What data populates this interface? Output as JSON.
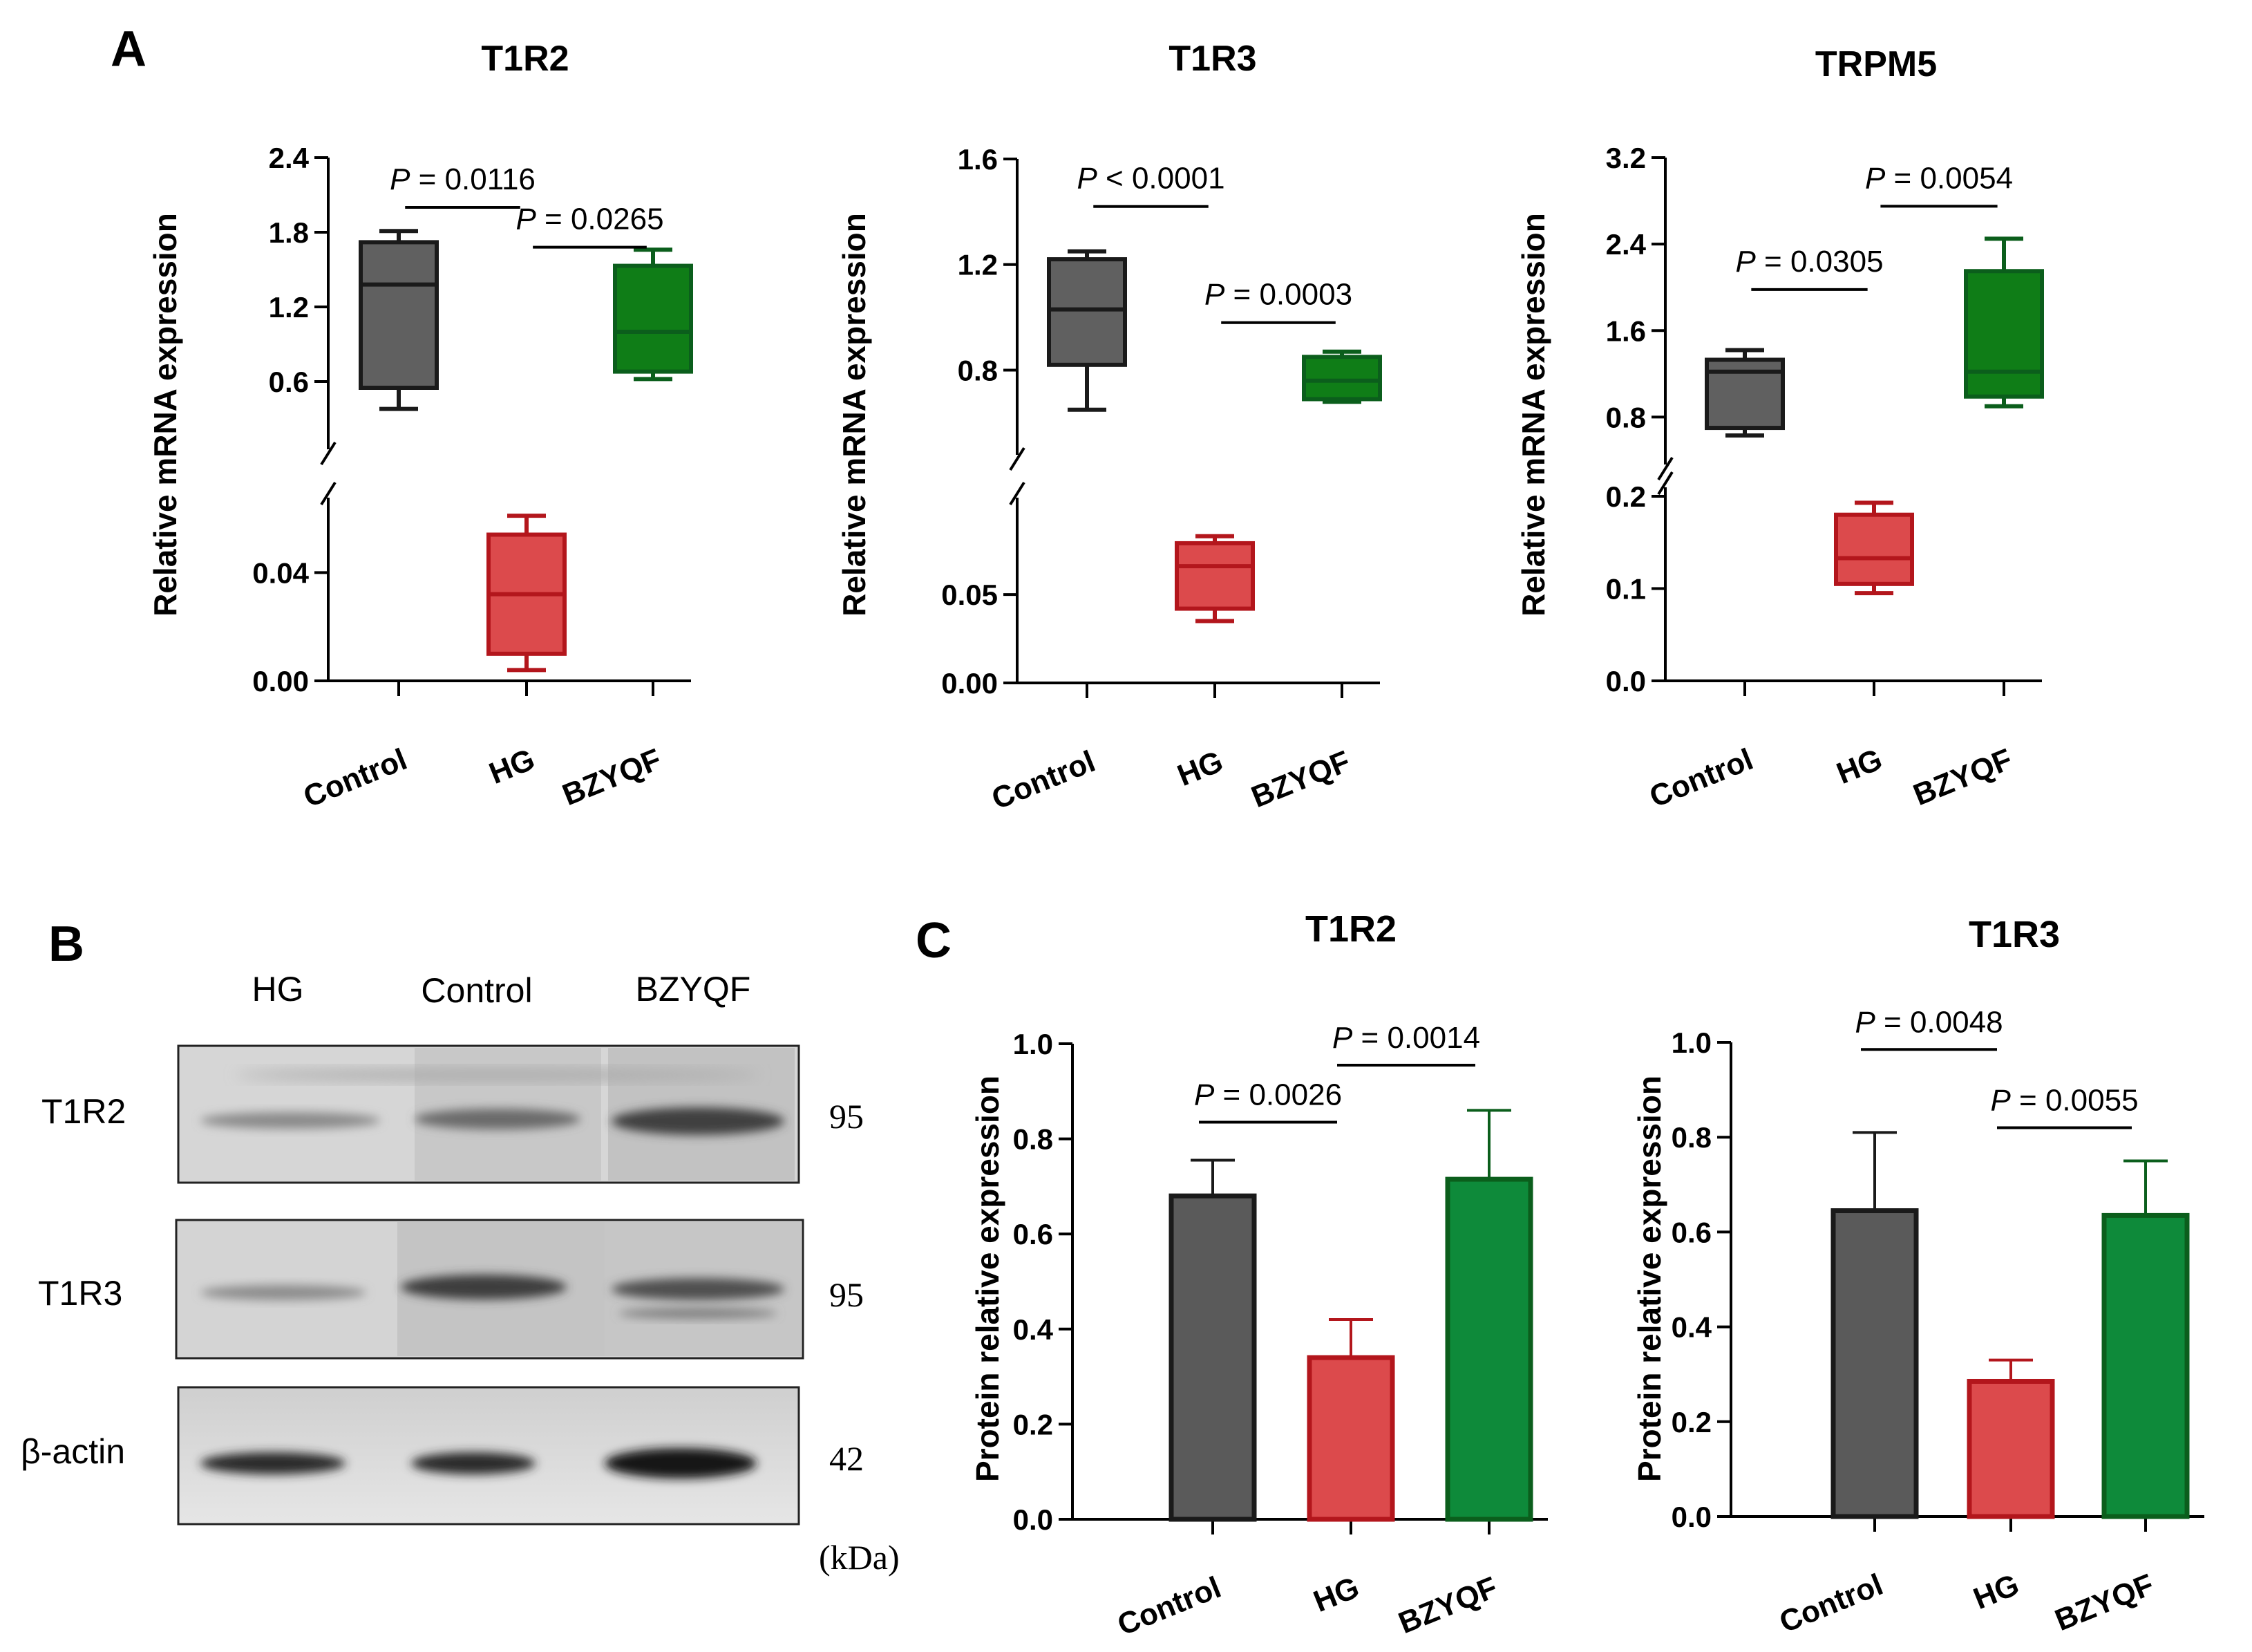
{
  "panels": {
    "A": {
      "letter": "A"
    },
    "B": {
      "letter": "B",
      "lanes": [
        "HG",
        "Control",
        "BZYQF"
      ],
      "rows": [
        {
          "label": "T1R2",
          "kda": "95"
        },
        {
          "label": "T1R3",
          "kda": "95"
        },
        {
          "label": "β-actin",
          "kda": "42"
        }
      ],
      "unit": "(kDa)"
    },
    "C": {
      "letter": "C"
    }
  },
  "colors": {
    "control_fill": "#5a5a5a",
    "control_stroke": "#1a1a1a",
    "hg_fill": "#dc4a4c",
    "hg_stroke": "#b3161c",
    "bzyqf_fill": "#0e8a3a",
    "bzyqf_stroke": "#0b5e1c",
    "box_control_fill": "#606060",
    "box_hg_fill": "#dc4a4c",
    "box_bzyqf_fill": "#0f7d17"
  },
  "chart_data": [
    {
      "type": "box",
      "title": "T1R2",
      "ylabel": "Relative mRNA expression",
      "categories": [
        "Control",
        "HG",
        "BZYQF"
      ],
      "broken_axis": {
        "lower_range": [
          0,
          0.06
        ],
        "upper_range": [
          0.3,
          2.4
        ]
      },
      "yticks_lower": [
        "0.00",
        "0.04"
      ],
      "yticks_upper": [
        "0.6",
        "1.2",
        "1.8",
        "2.4"
      ],
      "boxes": [
        {
          "name": "Control",
          "min": 0.38,
          "q1": 0.55,
          "median": 1.38,
          "q3": 1.72,
          "max": 1.81
        },
        {
          "name": "HG",
          "min": 0.004,
          "q1": 0.01,
          "median": 0.032,
          "q3": 0.054,
          "max": 0.061
        },
        {
          "name": "BZYQF",
          "min": 0.62,
          "q1": 0.68,
          "median": 1.0,
          "q3": 1.53,
          "max": 1.66
        }
      ],
      "comparisons": [
        {
          "from": 0,
          "to": 1,
          "label": "= 0.0116",
          "y": 2.0
        },
        {
          "from": 1,
          "to": 2,
          "label": "= 0.0265",
          "y": 1.68
        }
      ]
    },
    {
      "type": "box",
      "title": "T1R3",
      "ylabel": "Relative mRNA expression",
      "categories": [
        "Control",
        "HG",
        "BZYQF"
      ],
      "broken_axis": {
        "lower_range": [
          0,
          0.095
        ],
        "upper_range": [
          0.5,
          1.6
        ]
      },
      "yticks_lower": [
        "0.00",
        "0.05"
      ],
      "yticks_upper": [
        "0.8",
        "1.2",
        "1.6"
      ],
      "boxes": [
        {
          "name": "Control",
          "min": 0.65,
          "q1": 0.82,
          "median": 1.03,
          "q3": 1.22,
          "max": 1.25
        },
        {
          "name": "HG",
          "min": 0.035,
          "q1": 0.042,
          "median": 0.066,
          "q3": 0.079,
          "max": 0.083
        },
        {
          "name": "BZYQF",
          "min": 0.68,
          "q1": 0.69,
          "median": 0.76,
          "q3": 0.85,
          "max": 0.87
        }
      ],
      "comparisons": [
        {
          "from": 0,
          "to": 1,
          "label": "< 0.0001",
          "y": 1.42
        },
        {
          "from": 1,
          "to": 2,
          "label": "= 0.0003",
          "y": 0.98
        }
      ]
    },
    {
      "type": "box",
      "title": "TRPM5",
      "ylabel": "Relative mRNA expression",
      "categories": [
        "Control",
        "HG",
        "BZYQF"
      ],
      "broken_axis": {
        "lower_range": [
          0,
          0.2
        ],
        "upper_range": [
          0.4,
          3.2
        ]
      },
      "yticks_lower": [
        "0.0",
        "0.1",
        "0.2"
      ],
      "yticks_upper": [
        "0.8",
        "1.6",
        "2.4",
        "3.2"
      ],
      "boxes": [
        {
          "name": "Control",
          "min": 0.63,
          "q1": 0.7,
          "median": 1.22,
          "q3": 1.33,
          "max": 1.42
        },
        {
          "name": "HG",
          "min": 0.095,
          "q1": 0.105,
          "median": 0.133,
          "q3": 0.18,
          "max": 0.193
        },
        {
          "name": "BZYQF",
          "min": 0.9,
          "q1": 0.99,
          "median": 1.22,
          "q3": 2.15,
          "max": 2.45
        }
      ],
      "comparisons": [
        {
          "from": 0,
          "to": 1,
          "label": "= 0.0305",
          "y": 1.98
        },
        {
          "from": 1,
          "to": 2,
          "label": "= 0.0054",
          "y": 2.75
        }
      ]
    },
    {
      "type": "bar",
      "title": "T1R2",
      "ylabel": "Protein relative expression",
      "categories": [
        "Control",
        "HG",
        "BZYQF"
      ],
      "values": [
        0.68,
        0.34,
        0.715
      ],
      "errors": [
        0.075,
        0.08,
        0.145
      ],
      "ylim": [
        0,
        1.0
      ],
      "yticks": [
        "0.0",
        "0.2",
        "0.4",
        "0.6",
        "0.8",
        "1.0"
      ],
      "comparisons": [
        {
          "from": 0,
          "to": 1,
          "label": "= 0.0026",
          "y": 0.835
        },
        {
          "from": 1,
          "to": 2,
          "label": "= 0.0014",
          "y": 0.955
        }
      ]
    },
    {
      "type": "bar",
      "title": "T1R3",
      "ylabel": "Protein relative expression",
      "categories": [
        "Control",
        "HG",
        "BZYQF"
      ],
      "values": [
        0.645,
        0.285,
        0.635
      ],
      "errors": [
        0.165,
        0.045,
        0.115
      ],
      "ylim": [
        0,
        1.0
      ],
      "yticks": [
        "0.0",
        "0.2",
        "0.4",
        "0.6",
        "0.8",
        "1.0"
      ],
      "comparisons": [
        {
          "from": 0,
          "to": 1,
          "label": "= 0.0048",
          "y": 0.985
        },
        {
          "from": 1,
          "to": 2,
          "label": "= 0.0055",
          "y": 0.82
        }
      ]
    }
  ]
}
